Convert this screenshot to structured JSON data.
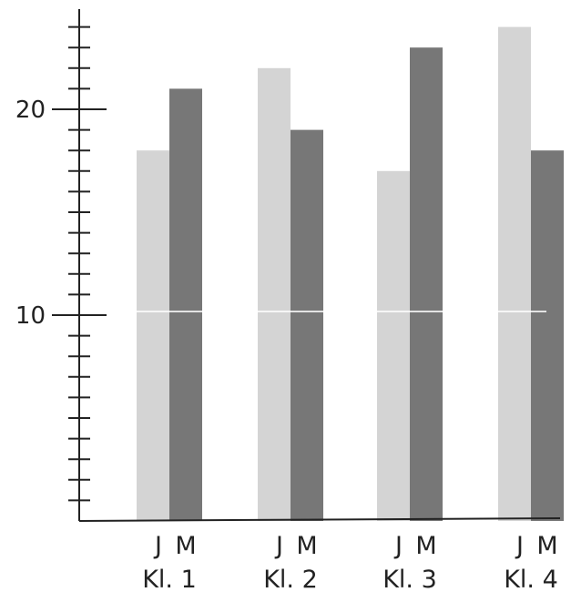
{
  "chart_data": {
    "type": "bar",
    "categories": [
      "Kl. 1",
      "Kl. 2",
      "Kl. 3",
      "Kl. 4"
    ],
    "series": [
      {
        "name": "J",
        "values": [
          18,
          22,
          17,
          24
        ]
      },
      {
        "name": "M",
        "values": [
          21,
          19,
          23,
          18
        ]
      }
    ],
    "ylim": [
      0,
      24
    ],
    "major_ticks": [
      10,
      20
    ],
    "minor_tick_step": 1,
    "grid": false,
    "colors": {
      "J": "#d4d4d4",
      "M": "#777777",
      "axis": "#222222"
    }
  }
}
